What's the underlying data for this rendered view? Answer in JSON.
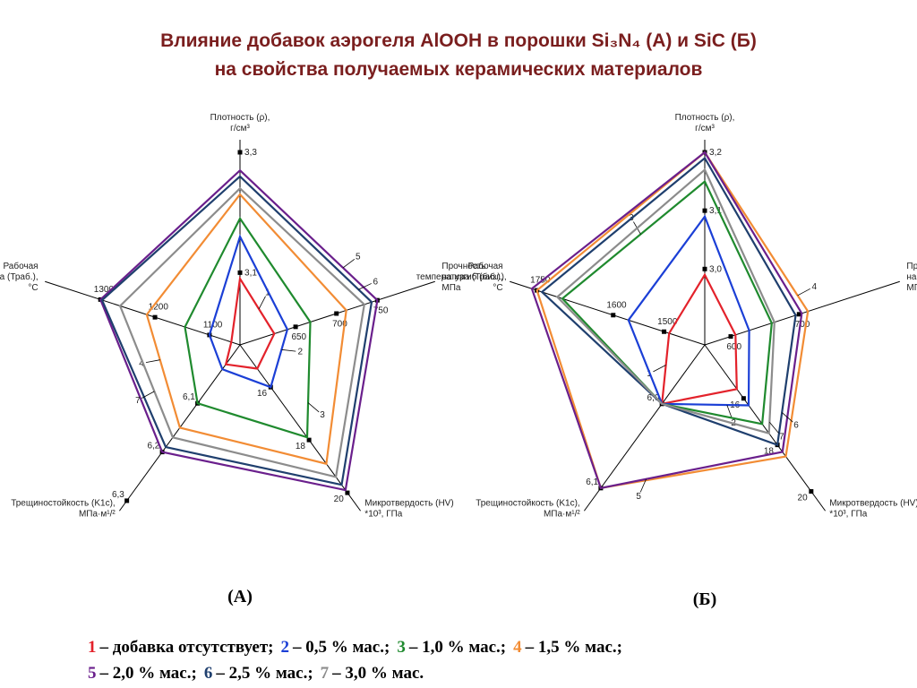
{
  "slide_title": [
    "Влияние добавок аэрогеля AlOOH в порошки Si₃N₄ (А) и SiC (Б)",
    "на свойства получаемых керамических материалов"
  ],
  "legend_text": [
    "– добавка отсутствует;",
    "– 0,5 % мас.;",
    "– 1,0 % мас.;",
    "– 1,5 % мас.;",
    "– 2,0 % мас.;",
    "– 2,5 % мас.;",
    "– 3,0 % мас."
  ],
  "chart_data": [
    {
      "type": "radar",
      "caption": "(А)",
      "axes": [
        {
          "label": [
            "Плотность (ρ),",
            "г/см³"
          ],
          "lim": [
            2.98,
            3.3
          ],
          "ticks": [
            {
              "value": 3.1,
              "label": "3,1"
            },
            {
              "value": 3.3,
              "label": "3,3"
            }
          ]
        },
        {
          "label": [
            "Прочность",
            "на изгиб (бизг.),",
            "МПа"
          ],
          "lim": [
            582,
            806
          ],
          "ticks": [
            650,
            700,
            750
          ]
        },
        {
          "label": [
            "Микротвердость (HV)",
            "*10³, ГПа"
          ],
          "lim": [
            14.4,
            20.3
          ],
          "ticks": [
            16,
            18,
            20
          ]
        },
        {
          "label": [
            "Трещиностойкость (K1c),",
            "МПа·м¹/²"
          ],
          "lim": [
            5.98,
            6.3
          ],
          "ticks": [
            {
              "value": 6.1,
              "label": "6,1"
            },
            {
              "value": 6.2,
              "label": "6,2"
            },
            {
              "value": 6.3,
              "label": "6,3"
            }
          ]
        },
        {
          "label": [
            "Рабочая",
            "температура (Траб.),",
            "°С"
          ],
          "lim": [
            1044,
            1380
          ],
          "ticks": [
            1100,
            1200,
            1300
          ]
        }
      ],
      "series": [
        {
          "name": "1",
          "color": "#e3222b",
          "values": [
            3.09,
            624,
            15.3,
            6.02,
            1060
          ]
        },
        {
          "name": "2",
          "color": "#1b3fd6",
          "values": [
            3.16,
            640,
            16,
            6.03,
            1100
          ]
        },
        {
          "name": "3",
          "color": "#1f8a2e",
          "values": [
            3.19,
            668,
            17.9,
            6.1,
            1145
          ]
        },
        {
          "name": "4",
          "color": "#f28c34",
          "values": [
            3.23,
            712,
            18.9,
            6.15,
            1215
          ]
        },
        {
          "name": "5",
          "color": "#6a1f8c",
          "values": [
            3.27,
            750,
            19.9,
            6.2,
            1300
          ]
        },
        {
          "name": "6",
          "color": "#1f3f6e",
          "values": [
            3.26,
            743,
            19.7,
            6.19,
            1297
          ]
        },
        {
          "name": "7",
          "color": "#8c8c8c",
          "values": [
            3.24,
            734,
            19.4,
            6.17,
            1264
          ]
        }
      ]
    },
    {
      "type": "radar",
      "caption": "(Б)",
      "axes": [
        {
          "label": [
            "Плотность (ρ),",
            "г/см³"
          ],
          "lim": [
            2.87,
            3.2
          ],
          "ticks": [
            {
              "value": 3.0,
              "label": "3,0"
            },
            {
              "value": 3.1,
              "label": "3,1"
            },
            {
              "value": 3.2,
              "label": "3,2"
            }
          ]
        },
        {
          "label": [
            "Прочность",
            "на изгиб (бизг.),",
            "МПа"
          ],
          "lim": [
            562,
            830
          ],
          "ticks": [
            600,
            700
          ]
        },
        {
          "label": [
            "Микротвердость (HV)",
            "*10³, ГПа"
          ],
          "lim": [
            13.7,
            20.4
          ],
          "ticks": [
            16,
            18,
            20
          ]
        },
        {
          "label": [
            "Трещиностойкость (K1c),",
            "МПа·м¹/²"
          ],
          "lim": [
            5.93,
            6.115
          ],
          "ticks": [
            {
              "value": 6.0,
              "label": "6,0"
            },
            {
              "value": 6.1,
              "label": "6,1"
            }
          ]
        },
        {
          "label": [
            "Рабочая",
            "температура (Траб.),",
            "°С"
          ],
          "lim": [
            1420,
            1780
          ],
          "ticks": [
            1500,
            1600,
            1750
          ]
        }
      ],
      "series": [
        {
          "name": "1",
          "color": "#e3222b",
          "values": [
            2.99,
            607,
            15.6,
            6.0,
            1490
          ]
        },
        {
          "name": "2",
          "color": "#1b3fd6",
          "values": [
            3.09,
            627,
            16.3,
            6.0,
            1570
          ]
        },
        {
          "name": "3",
          "color": "#1f8a2e",
          "values": [
            3.15,
            660,
            17.1,
            6.0,
            1700
          ]
        },
        {
          "name": "4",
          "color": "#f28c34",
          "values": [
            3.2,
            713,
            18.5,
            6.1,
            1750
          ]
        },
        {
          "name": "5",
          "color": "#6a1f8c",
          "values": [
            3.2,
            704,
            18.3,
            6.1,
            1760
          ]
        },
        {
          "name": "6",
          "color": "#1f3f6e",
          "values": [
            3.19,
            695,
            18,
            6.0,
            1740
          ]
        },
        {
          "name": "7",
          "color": "#8c8c8c",
          "values": [
            3.17,
            664,
            17.5,
            6.0,
            1710
          ]
        }
      ]
    }
  ]
}
